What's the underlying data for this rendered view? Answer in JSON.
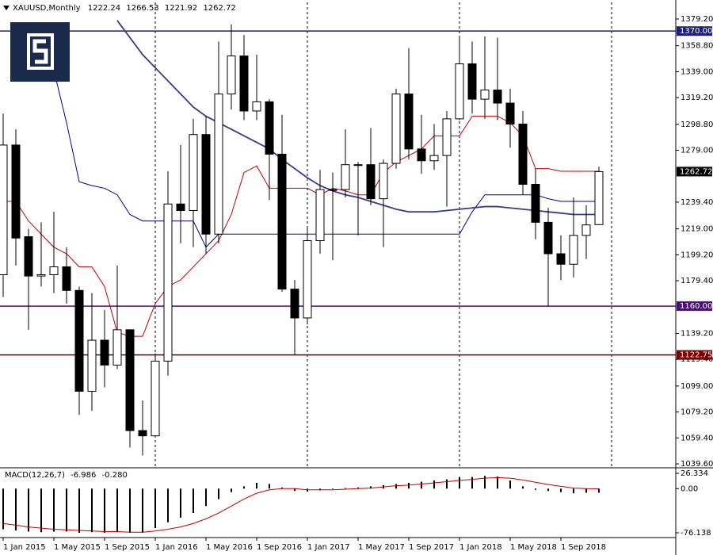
{
  "chart_data": [
    {
      "type": "candlestick",
      "title": "XAUUSD,Monthly",
      "categories": [
        "1 Jan 2015",
        null,
        null,
        null,
        "1 May 2015",
        null,
        null,
        null,
        "1 Sep 2015",
        null,
        null,
        null,
        "1 Jan 2016",
        null,
        null,
        null,
        "1 May 2016",
        null,
        null,
        null,
        "1 Sep 2016",
        null,
        null,
        null,
        "1 Jan 2017",
        null,
        null,
        null,
        "1 May 2017",
        null,
        null,
        null,
        "1 Sep 2017",
        null,
        null,
        null,
        "1 Jan 2018",
        null,
        null,
        null,
        "1 May 2018",
        null,
        null,
        null,
        "1 Sep 2018",
        null,
        null,
        null
      ],
      "open": [
        1184,
        1283,
        1213,
        1183,
        1184,
        1190,
        1172,
        1095,
        1134,
        1115,
        1142,
        1065,
        1061,
        1118,
        1238,
        1233,
        1291,
        1215,
        1322,
        1351,
        1309,
        1316,
        1276,
        1173,
        1151,
        1210,
        1249,
        1249,
        1268,
        1268,
        1242,
        1269,
        1322,
        1280,
        1271,
        1275,
        1303,
        1345,
        1318,
        1325,
        1315,
        1299,
        1253,
        1224,
        1200,
        1192,
        1214,
        1222.24
      ],
      "high": [
        1307,
        1295,
        1219,
        1224,
        1232,
        1205,
        1175,
        1170,
        1157,
        1191,
        1142,
        1088,
        1124,
        1263,
        1283,
        1303,
        1305,
        1362,
        1375,
        1367,
        1352,
        1318,
        1306,
        1180,
        1220,
        1264,
        1262,
        1295,
        1270,
        1296,
        1272,
        1326,
        1357,
        1306,
        1299,
        1309,
        1366,
        1362,
        1366,
        1365,
        1326,
        1309,
        1265,
        1235,
        1214,
        1243,
        1237,
        1266.53
      ],
      "low": [
        1167,
        1191,
        1142,
        1175,
        1170,
        1162,
        1077,
        1080,
        1098,
        1112,
        1052,
        1046,
        1062,
        1107,
        1208,
        1205,
        1200,
        1208,
        1310,
        1302,
        1302,
        1241,
        1171,
        1123,
        1146,
        1200,
        1195,
        1243,
        1214,
        1237,
        1205,
        1265,
        1272,
        1261,
        1264,
        1236,
        1302,
        1307,
        1303,
        1302,
        1281,
        1245,
        1211,
        1160,
        1180,
        1182,
        1196,
        1221.92
      ],
      "close": [
        1283,
        1212,
        1183,
        1184,
        1190,
        1172,
        1095,
        1134,
        1115,
        1142,
        1065,
        1061,
        1118,
        1238,
        1233,
        1291,
        1215,
        1322,
        1351,
        1309,
        1316,
        1276,
        1173,
        1151,
        1210,
        1249,
        1249,
        1268,
        1268,
        1242,
        1269,
        1322,
        1280,
        1271,
        1275,
        1303,
        1345,
        1318,
        1325,
        1315,
        1299,
        1253,
        1224,
        1200,
        1192,
        1214,
        1222,
        1262.72
      ],
      "up_color": "#ffffff",
      "down_color": "#000000",
      "wick_color": "#000000",
      "overlays": [
        {
          "color": "#c00000",
          "values": [
            1240,
            1240,
            1225,
            1215,
            1205,
            1200,
            1190,
            1190,
            1175,
            1140,
            1137,
            1137,
            1162,
            1175,
            1180,
            1190,
            1200,
            1210,
            1230,
            1262,
            1267,
            1250,
            1250,
            1250,
            1250,
            1245,
            1250,
            1248,
            1245,
            1245,
            1262,
            1270,
            1275,
            1280,
            1290,
            1290,
            1290,
            1305,
            1305,
            1305,
            1300,
            1290,
            1265,
            1265,
            1263,
            1263,
            1263,
            1263
          ]
        },
        {
          "color": "#00008b",
          "values": [
            null,
            null,
            null,
            null,
            1340,
            1300,
            1255,
            1252,
            1250,
            1245,
            1230,
            1225,
            1225,
            1225,
            1225,
            1225,
            1205,
            1215,
            1215,
            1215,
            1215,
            1215,
            1215,
            1215,
            1215,
            1215,
            1215,
            1215,
            1215,
            1215,
            1215,
            1215,
            1215,
            1215,
            1215,
            1215,
            1215,
            1232,
            1245,
            1245,
            1245,
            1245,
            1245,
            1242,
            1240,
            1240,
            1240,
            1240
          ]
        },
        {
          "color": "#3a3a8c",
          "values": [
            null,
            null,
            null,
            null,
            null,
            null,
            null,
            null,
            null,
            1378,
            1365,
            1352,
            1342,
            1332,
            1322,
            1312,
            1305,
            1300,
            1295,
            1290,
            1285,
            1280,
            1272,
            1265,
            1258,
            1252,
            1248,
            1245,
            1243,
            1240,
            1237,
            1234,
            1232,
            1232,
            1232,
            1233,
            1234,
            1235,
            1236,
            1236,
            1235,
            1234,
            1233,
            1232,
            1231,
            1230,
            1230,
            1230
          ]
        }
      ],
      "levels": [
        {
          "value": 1370,
          "label": "1370.00",
          "color": "#1f1f7a"
        },
        {
          "value": 1160,
          "label": "1160.00",
          "color": "#4b0f7a"
        },
        {
          "value": 1122.75,
          "label": "1122.75",
          "color": "#7a0000"
        }
      ],
      "ylim": [
        1036.6,
        1391.9
      ],
      "yticks": [
        {
          "value": 1379.2,
          "label": "1379.20"
        },
        {
          "value": 1358.8,
          "label": "1358.80"
        },
        {
          "value": 1339,
          "label": "1339.00"
        },
        {
          "value": 1319.2,
          "label": "1319.20"
        },
        {
          "value": 1298.8,
          "label": "1298.80"
        },
        {
          "value": 1279,
          "label": "1279.00"
        },
        {
          "value": 1239.4,
          "label": "1239.40"
        },
        {
          "value": 1219,
          "label": "1219.00"
        },
        {
          "value": 1199.2,
          "label": "1199.20"
        },
        {
          "value": 1179.4,
          "label": "1179.40"
        },
        {
          "value": 1139.2,
          "label": "1139.20"
        },
        {
          "value": 1119.4,
          "label": "1119.40"
        },
        {
          "value": 1099,
          "label": "1099.00"
        },
        {
          "value": 1079.2,
          "label": "1079.20"
        },
        {
          "value": 1059.4,
          "label": "1059.40"
        },
        {
          "value": 1039.6,
          "label": "1039.60"
        }
      ],
      "period_separators": true
    },
    {
      "type": "macd",
      "title": "MACD(12,26,7)",
      "histogram": {
        "color": "#000000",
        "values": [
          -70,
          -72,
          -74,
          -75,
          -74,
          -74,
          -76,
          -75,
          -76,
          -75,
          -76,
          -76,
          -68,
          -58,
          -50,
          -42,
          -30,
          -18,
          -6,
          4,
          10,
          8,
          2,
          -4,
          -5,
          -3,
          -1,
          1,
          2,
          4,
          6,
          8,
          10,
          12,
          14,
          16,
          20,
          20,
          22,
          21,
          14,
          4,
          -2,
          -4,
          -6,
          -8,
          -7,
          -6.986
        ]
      },
      "signal": {
        "color": "#c00000",
        "values": [
          -60,
          -63,
          -66,
          -68,
          -70,
          -71,
          -72,
          -73,
          -74,
          -74,
          -75,
          -75,
          -73,
          -70,
          -66,
          -60,
          -52,
          -42,
          -30,
          -18,
          -8,
          -2,
          0,
          0,
          -2,
          -2,
          -2,
          -1,
          0,
          1,
          3,
          5,
          6,
          8,
          10,
          12,
          14,
          16,
          18,
          19,
          18,
          15,
          11,
          7,
          4,
          1,
          0,
          -0.28
        ],
        "value_labels": [
          null,
          null,
          null,
          null,
          null,
          null,
          null,
          null,
          null,
          null,
          null,
          null,
          null,
          null,
          null,
          null,
          null,
          null,
          null,
          null,
          null,
          null,
          null,
          null,
          null,
          null,
          null,
          null,
          null,
          null,
          null,
          null,
          null,
          null,
          null,
          null,
          null,
          null,
          null,
          null,
          null,
          null,
          null,
          null,
          null,
          null,
          null,
          "-0.280"
        ]
      },
      "ylim": [
        -84.3,
        33.2
      ],
      "yticks": [
        26.334,
        {
          "value": 0,
          "label": "0.00"
        },
        -76.138
      ]
    }
  ]
}
